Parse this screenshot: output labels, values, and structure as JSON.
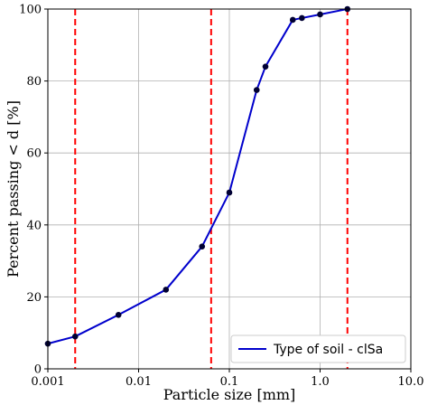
{
  "chart_data": {
    "type": "line",
    "xscale": "log",
    "xlim": [
      0.001,
      10.0
    ],
    "ylim": [
      0,
      100
    ],
    "xticks": [
      0.001,
      0.01,
      0.1,
      1.0,
      10.0
    ],
    "xtick_labels": [
      "0.001",
      "0.01",
      "0.1",
      "1.0",
      "10.0"
    ],
    "yticks": [
      0,
      20,
      40,
      60,
      80,
      100
    ],
    "ytick_labels": [
      "0",
      "20",
      "40",
      "60",
      "80",
      "100"
    ],
    "xlabel": "Particle size [mm]",
    "ylabel": "Percent passing < d [%]",
    "grid": true,
    "legend_position": "bottom-right",
    "series": [
      {
        "name": "Type of soil - clSa",
        "color": "#0000cc",
        "marker_color": "#000033",
        "x": [
          0.001,
          0.002,
          0.006,
          0.02,
          0.05,
          0.1,
          0.2,
          0.25,
          0.5,
          0.63,
          1.0,
          2.0
        ],
        "y": [
          7,
          9,
          15,
          22,
          34,
          49,
          77.5,
          84,
          97,
          97.5,
          98.5,
          100
        ]
      }
    ],
    "reference_lines": {
      "orientation": "vertical",
      "color": "#ff0000",
      "style": "dashed",
      "x": [
        0.002,
        0.063,
        2.0
      ]
    }
  }
}
